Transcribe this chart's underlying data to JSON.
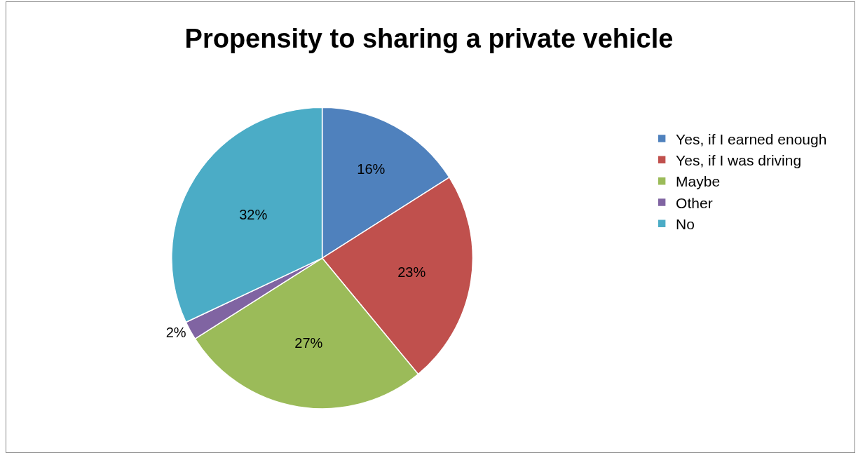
{
  "chart_data": {
    "type": "pie",
    "title": "Propensity to sharing a private vehicle",
    "categories": [
      "Yes, if I earned enough",
      "Yes, if I was driving",
      "Maybe",
      "Other",
      "No"
    ],
    "values": [
      16,
      23,
      27,
      2,
      32
    ],
    "colors": [
      "#4f81bd",
      "#c0504d",
      "#9bbb59",
      "#8064a2",
      "#4bacc6"
    ],
    "value_labels": [
      "16%",
      "23%",
      "27%",
      "2%",
      "32%"
    ],
    "legend": "right"
  }
}
